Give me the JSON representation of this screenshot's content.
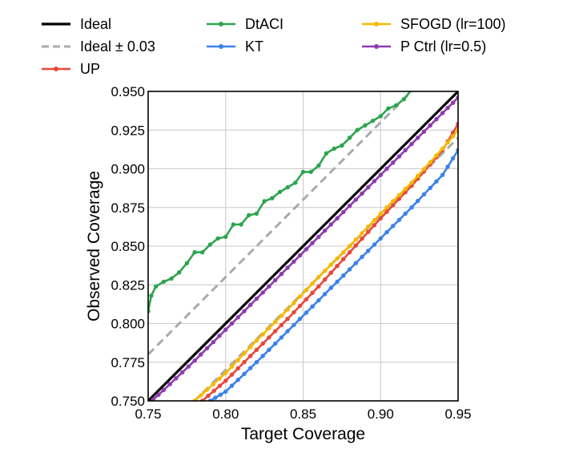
{
  "chart_data": {
    "type": "line",
    "title": "",
    "xlabel": "Target Coverage",
    "ylabel": "Observed Coverage",
    "xlim": [
      0.75,
      0.95
    ],
    "ylim": [
      0.75,
      0.95
    ],
    "grid": true,
    "legend_position": "top",
    "x_ticks": [
      "0.75",
      "0.80",
      "0.85",
      "0.90",
      "0.95"
    ],
    "y_ticks": [
      "0.750",
      "0.775",
      "0.800",
      "0.825",
      "0.850",
      "0.875",
      "0.900",
      "0.925",
      "0.950"
    ],
    "reference_lines": [
      {
        "name": "Ideal",
        "style": "solid",
        "color": "#000000",
        "offset": 0.0
      },
      {
        "name": "Ideal ± 0.03",
        "style": "dashed",
        "color": "#aaaaaa",
        "offset": 0.03
      }
    ],
    "series": [
      {
        "name": "UP",
        "color": "#e8473b",
        "x": [
          0.785,
          0.8,
          0.82,
          0.84,
          0.86,
          0.88,
          0.9,
          0.92,
          0.94,
          0.95
        ],
        "y": [
          0.75,
          0.763,
          0.783,
          0.803,
          0.824,
          0.846,
          0.868,
          0.889,
          0.912,
          0.929
        ]
      },
      {
        "name": "DtACI",
        "color": "#2ea44f",
        "x": [
          0.75,
          0.752,
          0.755,
          0.76,
          0.765,
          0.77,
          0.775,
          0.78,
          0.785,
          0.79,
          0.795,
          0.8,
          0.805,
          0.81,
          0.815,
          0.82,
          0.825,
          0.83,
          0.835,
          0.84,
          0.845,
          0.85,
          0.855,
          0.86,
          0.865,
          0.87,
          0.875,
          0.88,
          0.885,
          0.89,
          0.895,
          0.9,
          0.905,
          0.91,
          0.915,
          0.92
        ],
        "y": [
          0.808,
          0.818,
          0.824,
          0.827,
          0.829,
          0.833,
          0.839,
          0.846,
          0.846,
          0.851,
          0.855,
          0.856,
          0.864,
          0.864,
          0.87,
          0.871,
          0.879,
          0.881,
          0.885,
          0.888,
          0.891,
          0.898,
          0.898,
          0.902,
          0.91,
          0.913,
          0.915,
          0.92,
          0.925,
          0.928,
          0.931,
          0.934,
          0.939,
          0.941,
          0.945,
          0.951
        ]
      },
      {
        "name": "KT",
        "color": "#3b82e8",
        "x": [
          0.79,
          0.8,
          0.82,
          0.84,
          0.86,
          0.88,
          0.9,
          0.92,
          0.94,
          0.95
        ],
        "y": [
          0.75,
          0.756,
          0.775,
          0.795,
          0.815,
          0.835,
          0.855,
          0.875,
          0.896,
          0.912
        ]
      },
      {
        "name": "SFOGD (lr=100)",
        "color": "#f5b800",
        "x": [
          0.78,
          0.8,
          0.82,
          0.84,
          0.86,
          0.88,
          0.9,
          0.92,
          0.94,
          0.95
        ],
        "y": [
          0.75,
          0.768,
          0.789,
          0.809,
          0.83,
          0.85,
          0.871,
          0.891,
          0.913,
          0.925
        ]
      },
      {
        "name": "P Ctrl (lr=0.5)",
        "color": "#8e3bb0",
        "x": [
          0.75,
          0.76,
          0.78,
          0.8,
          0.82,
          0.84,
          0.86,
          0.88,
          0.9,
          0.92,
          0.94,
          0.95
        ],
        "y": [
          0.748,
          0.757,
          0.776,
          0.796,
          0.816,
          0.836,
          0.856,
          0.876,
          0.896,
          0.916,
          0.936,
          0.946
        ]
      }
    ],
    "legend": [
      {
        "label": "Ideal",
        "kind": "solid",
        "color": "#000000"
      },
      {
        "label": "DtACI",
        "kind": "marker",
        "color": "#2ea44f"
      },
      {
        "label": "SFOGD (lr=100)",
        "kind": "marker",
        "color": "#f5b800"
      },
      {
        "label": "Ideal ± 0.03",
        "kind": "dashed",
        "color": "#aaaaaa"
      },
      {
        "label": "KT",
        "kind": "marker",
        "color": "#3b82e8"
      },
      {
        "label": "P Ctrl (lr=0.5)",
        "kind": "marker",
        "color": "#8e3bb0"
      },
      {
        "label": "UP",
        "kind": "marker",
        "color": "#e8473b"
      }
    ]
  }
}
